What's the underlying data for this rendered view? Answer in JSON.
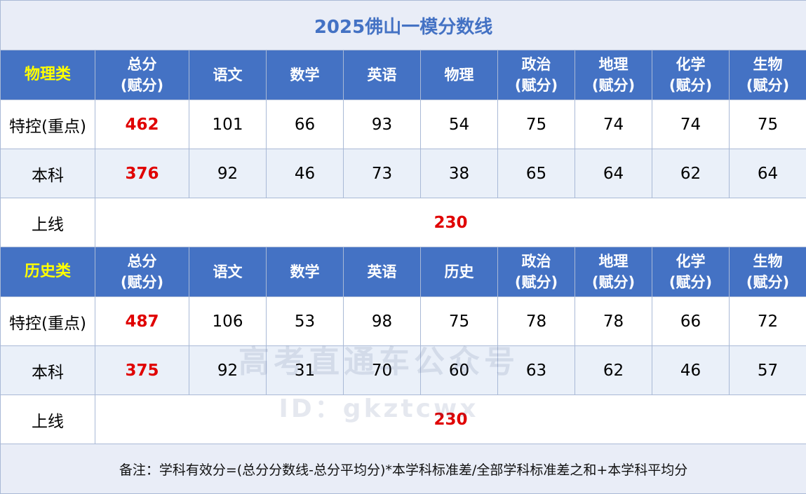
{
  "title": "2025佛山一模分数线",
  "physics": {
    "category": "物理类",
    "headers": [
      "总分\n(赋分)",
      "语文",
      "数学",
      "英语",
      "物理",
      "政治\n(赋分)",
      "地理\n(赋分)",
      "化学\n(赋分)",
      "生物\n(赋分)"
    ],
    "rows": [
      {
        "label": "特控(重点)",
        "values": [
          "462",
          "101",
          "66",
          "93",
          "54",
          "75",
          "74",
          "74",
          "75"
        ]
      },
      {
        "label": "本科",
        "values": [
          "376",
          "92",
          "46",
          "73",
          "38",
          "65",
          "64",
          "62",
          "64"
        ]
      }
    ],
    "online": {
      "label": "上线",
      "value": "230"
    }
  },
  "history": {
    "category": "历史类",
    "headers": [
      "总分\n(赋分)",
      "语文",
      "数学",
      "英语",
      "历史",
      "政治\n(赋分)",
      "地理\n(赋分)",
      "化学\n(赋分)",
      "生物\n(赋分)"
    ],
    "rows": [
      {
        "label": "特控(重点)",
        "values": [
          "487",
          "106",
          "53",
          "98",
          "75",
          "78",
          "78",
          "66",
          "72"
        ]
      },
      {
        "label": "本科",
        "values": [
          "375",
          "92",
          "31",
          "70",
          "60",
          "63",
          "62",
          "46",
          "57"
        ]
      }
    ],
    "online": {
      "label": "上线",
      "value": "230"
    }
  },
  "note": "备注：学科有效分=(总分分数线-总分平均分)*本学科标准差/全部学科标准差之和+本学科平均分",
  "watermark": {
    "line1": "高考直通车公众号",
    "line2": "ID：gkztcwx"
  },
  "colors": {
    "header_bg": "#4472c4",
    "category_text": "#ffff00",
    "highlight_red": "#e00000",
    "title_text": "#4472c4"
  }
}
